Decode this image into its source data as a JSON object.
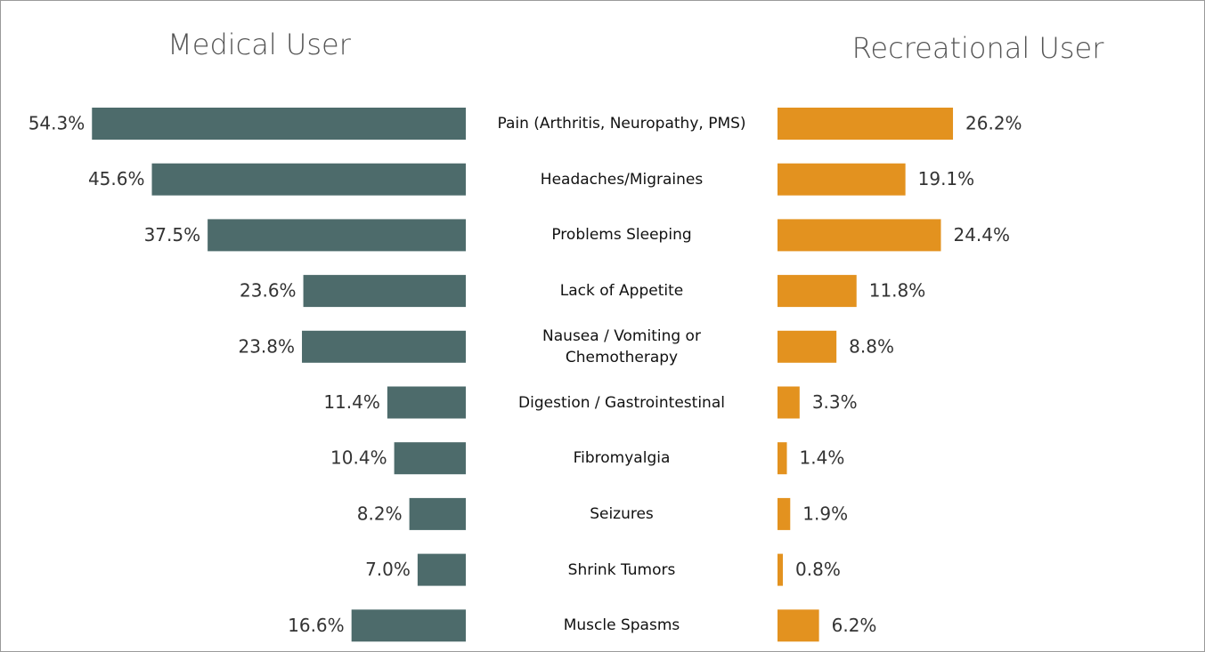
{
  "chart_data": {
    "type": "butterfly",
    "categories": [
      "Pain (Arthritis, Neuropathy, PMS)",
      "Headaches/Migraines",
      "Problems Sleeping",
      "Lack of Appetite",
      "Nausea / Vomiting or Chemotherapy",
      "Digestion / Gastrointestinal",
      "Fibromyalgia",
      "Seizures",
      "Shrink Tumors",
      "Muscle Spasms"
    ],
    "series": [
      {
        "name": "Medical User",
        "color": "#4d6b6b",
        "values": [
          54.3,
          45.6,
          37.5,
          23.6,
          23.8,
          11.4,
          10.4,
          8.2,
          7.0,
          16.6
        ],
        "value_labels": [
          "54.3%",
          "45.6%",
          "37.5%",
          "23.6%",
          "23.8%",
          "11.4%",
          "10.4%",
          "8.2%",
          "7.0%",
          "16.6%"
        ]
      },
      {
        "name": "Recreational User",
        "color": "#e3921f",
        "values": [
          26.2,
          19.1,
          24.4,
          11.8,
          8.8,
          3.3,
          1.4,
          1.9,
          0.8,
          6.2
        ],
        "value_labels": [
          "26.2%",
          "19.1%",
          "24.4%",
          "11.8%",
          "8.8%",
          "3.3%",
          "1.4%",
          "1.9%",
          "0.8%",
          "6.2%"
        ]
      }
    ]
  }
}
